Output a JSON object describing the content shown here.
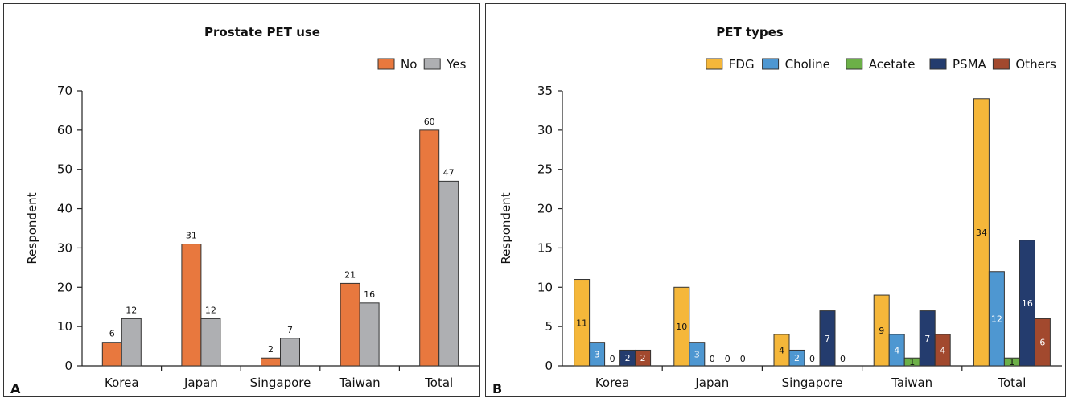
{
  "chart_data": [
    {
      "type": "bar",
      "panel_letter": "A",
      "title": "Prostate PET use",
      "ylabel": "Respondent",
      "xlabel": "",
      "ylim": [
        0,
        70
      ],
      "yticks": [
        0,
        10,
        20,
        30,
        40,
        50,
        60,
        70
      ],
      "legend_position": "top-right",
      "grid": false,
      "categories": [
        "Korea",
        "Japan",
        "Singapore",
        "Taiwan",
        "Total"
      ],
      "series": [
        {
          "name": "No",
          "color": "#E8783E",
          "values": [
            6,
            31,
            2,
            21,
            60
          ]
        },
        {
          "name": "Yes",
          "color": "#AEAFB2",
          "values": [
            12,
            12,
            7,
            16,
            47
          ]
        }
      ]
    },
    {
      "type": "bar",
      "panel_letter": "B",
      "title": "PET types",
      "ylabel": "Respondent",
      "xlabel": "",
      "ylim": [
        0,
        35
      ],
      "yticks": [
        0,
        5,
        10,
        15,
        20,
        25,
        30,
        35
      ],
      "legend_position": "top-right",
      "grid": false,
      "categories": [
        "Korea",
        "Japan",
        "Singapore",
        "Taiwan",
        "Total"
      ],
      "series": [
        {
          "name": "FDG",
          "color": "#F5B73A",
          "values": [
            11,
            10,
            4,
            9,
            34
          ]
        },
        {
          "name": "Choline",
          "color": "#4E97D1",
          "values": [
            3,
            3,
            2,
            4,
            12
          ]
        },
        {
          "name": "Acetate",
          "color": "#6CB048",
          "values": [
            0,
            0,
            0,
            1,
            1
          ]
        },
        {
          "name": "PSMA",
          "color": "#243C6E",
          "values": [
            2,
            0,
            7,
            7,
            16
          ]
        },
        {
          "name": "Others",
          "color": "#A2492E",
          "values": [
            2,
            0,
            0,
            4,
            6
          ]
        }
      ]
    }
  ]
}
